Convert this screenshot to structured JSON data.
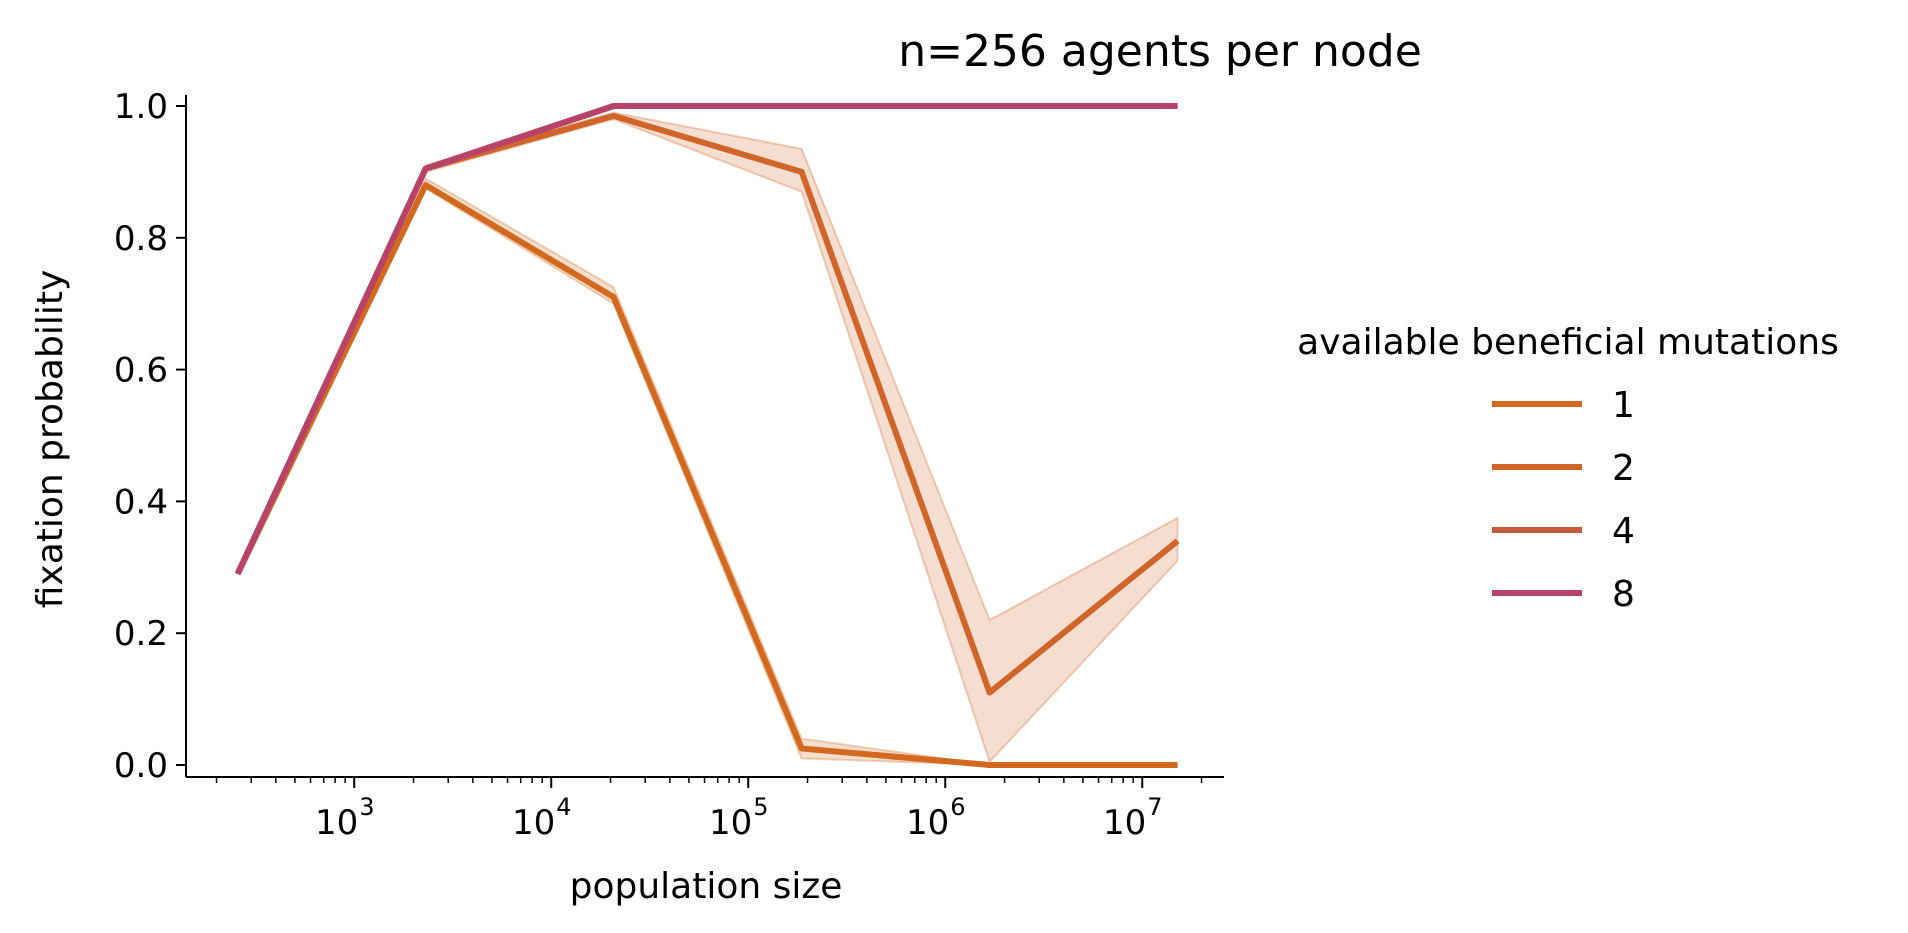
{
  "chart_data": {
    "type": "line",
    "title": "n=256 agents per node",
    "xlabel": "population size",
    "ylabel": "fixation probability",
    "xscale": "log",
    "xlim": [
      140,
      26000000
    ],
    "ylim": [
      -0.02,
      1.02
    ],
    "x_ticks": [
      {
        "value": 1000,
        "base": "10",
        "exp": "3"
      },
      {
        "value": 10000,
        "base": "10",
        "exp": "4"
      },
      {
        "value": 100000,
        "base": "10",
        "exp": "5"
      },
      {
        "value": 1000000,
        "base": "10",
        "exp": "6"
      },
      {
        "value": 10000000,
        "base": "10",
        "exp": "7"
      }
    ],
    "y_ticks": [
      {
        "value": 0.0,
        "label": "0.0"
      },
      {
        "value": 0.2,
        "label": "0.2"
      },
      {
        "value": 0.4,
        "label": "0.4"
      },
      {
        "value": 0.6,
        "label": "0.6"
      },
      {
        "value": 0.8,
        "label": "0.8"
      },
      {
        "value": 1.0,
        "label": "1.0"
      }
    ],
    "legend": {
      "title": "available beneficial mutations",
      "position": "right"
    },
    "x": [
      256,
      2304,
      20736,
      186624,
      1679616,
      15116544
    ],
    "series": [
      {
        "name": "1",
        "color": "#d2691e",
        "values": [
          0.29,
          0.88,
          0.71,
          0.025,
          0.0,
          0.0
        ],
        "ci_low": [
          0.29,
          0.875,
          0.7,
          0.01,
          0.0,
          0.0
        ],
        "ci_high": [
          0.29,
          0.89,
          0.725,
          0.04,
          0.0,
          0.0
        ]
      },
      {
        "name": "2",
        "color": "#d06429",
        "values": [
          0.29,
          0.905,
          0.985,
          0.9,
          0.11,
          0.34
        ],
        "ci_low": [
          0.29,
          0.9,
          0.98,
          0.87,
          0.005,
          0.31
        ],
        "ci_high": [
          0.29,
          0.91,
          0.99,
          0.935,
          0.22,
          0.375
        ]
      },
      {
        "name": "4",
        "color": "#c75a3a",
        "values": [
          0.29,
          0.905,
          1.0,
          1.0,
          1.0,
          1.0
        ]
      },
      {
        "name": "8",
        "color": "#b8436a",
        "values": [
          0.29,
          0.905,
          1.0,
          1.0,
          1.0,
          1.0
        ]
      }
    ]
  }
}
